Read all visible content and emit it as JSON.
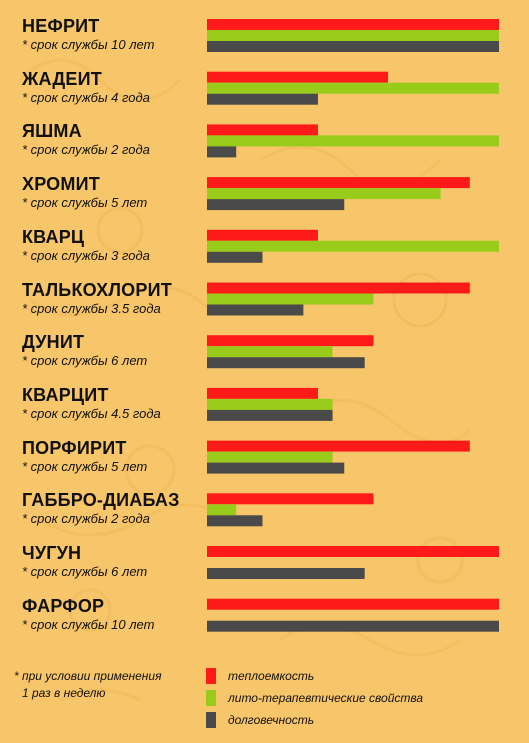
{
  "chart_data": {
    "type": "bar",
    "orientation": "horizontal",
    "categories": [
      "НЕФРИТ",
      "ЖАДЕИТ",
      "ЯШМА",
      "ХРОМИТ",
      "КВАРЦ",
      "ТАЛЬКОХЛОРИТ",
      "ДУНИТ",
      "КВАРЦИТ",
      "ПОРФИРИТ",
      "ГАББРО-ДИАБАЗ",
      "ЧУГУН",
      "ФАРФОР"
    ],
    "notes": [
      "* срок службы 10 лет",
      "* срок службы 4 года",
      "* срок службы  2 года",
      "* срок службы  5 лет",
      "* срок службы  3  года",
      "* срок службы  3.5 года",
      "* срок службы 6 лет",
      "* срок службы 4.5 года",
      "* срок службы 5 лет",
      "* срок службы  2 года",
      "* срок службы  6 лет",
      "* срок службы 10 лет"
    ],
    "series": [
      {
        "name": "теплоемкость",
        "color": "#ff1a1a",
        "values": [
          10,
          6.2,
          3.8,
          9,
          3.8,
          9,
          5.7,
          3.8,
          9,
          5.7,
          10,
          10
        ]
      },
      {
        "name": "лито-терапевтические свойства",
        "color": "#99cc1a",
        "values": [
          10,
          10,
          10,
          8,
          10,
          5.7,
          4.3,
          4.3,
          4.3,
          1,
          0,
          0
        ]
      },
      {
        "name": "долговечность",
        "color": "#4a4a4a",
        "values": [
          10,
          3.8,
          1,
          4.7,
          1.9,
          3.3,
          5.4,
          4.3,
          4.7,
          1.9,
          5.4,
          10
        ]
      }
    ],
    "xlim": [
      0,
      10
    ],
    "grid": false,
    "legend_position": "bottom"
  },
  "footnote": {
    "line1": "*  при условии применения",
    "line2": "1 раз в неделю"
  }
}
